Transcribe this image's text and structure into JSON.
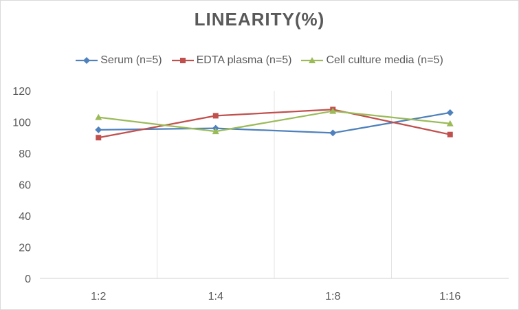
{
  "chart_data": {
    "type": "line",
    "title": "LINEARITY(%)",
    "xlabel": "",
    "ylabel": "",
    "categories": [
      "1:2",
      "1:4",
      "1:8",
      "1:16"
    ],
    "ylim": [
      0,
      120
    ],
    "yticks": [
      0,
      20,
      40,
      60,
      80,
      100,
      120
    ],
    "grid": "vertical",
    "legend_position": "top",
    "series": [
      {
        "name": "Serum (n=5)",
        "color": "#4f81bd",
        "marker": "diamond",
        "values": [
          95,
          96,
          93,
          106
        ]
      },
      {
        "name": "EDTA plasma (n=5)",
        "color": "#c0504d",
        "marker": "square",
        "values": [
          90,
          104,
          108,
          92
        ]
      },
      {
        "name": "Cell culture media (n=5)",
        "color": "#9bbb59",
        "marker": "triangle",
        "values": [
          103,
          94,
          107,
          99
        ]
      }
    ]
  }
}
